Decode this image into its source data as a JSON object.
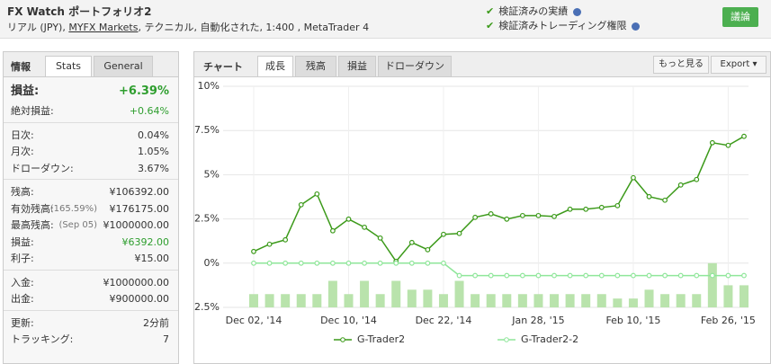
{
  "header": {
    "title": "FX Watch ポートフォリオ2",
    "subtitle_parts": [
      "リアル (JPY), ",
      "MYFX Markets",
      ", テクニカル, 自動化された, 1:400 , MetaTrader 4"
    ],
    "badges": [
      "検証済みの実績",
      "検証済みトレーディング権限"
    ],
    "button": "議論"
  },
  "sidebar": {
    "tabs": [
      "情報",
      "Stats",
      "General"
    ],
    "groups": [
      [
        {
          "label": "損益:",
          "value": "+6.39%",
          "value_color": "#2e9e2e"
        },
        {
          "label": "絶対損益:",
          "value": "+0.64%",
          "value_color": "#2e9e2e"
        }
      ],
      [
        {
          "label": "日次:",
          "value": "0.04%"
        },
        {
          "label": "月次:",
          "value": "1.05%"
        },
        {
          "label": "ドローダウン:",
          "value": "3.67%"
        }
      ],
      [
        {
          "label": "残高:",
          "value": "¥106392.00"
        },
        {
          "label": "有効残高:",
          "note": "(165.59%)",
          "value": "¥176175.00"
        },
        {
          "label": "最高残高:",
          "note": "(Sep 05)",
          "value": "¥1000000.00"
        },
        {
          "label": "損益:",
          "value": "¥6392.00",
          "value_color": "#2e9e2e"
        },
        {
          "label": "利子:",
          "value": "¥15.00"
        }
      ],
      [
        {
          "label": "入金:",
          "value": "¥1000000.00"
        },
        {
          "label": "出金:",
          "value": "¥900000.00"
        }
      ],
      [
        {
          "label": "更新:",
          "value": "2分前"
        },
        {
          "label": "トラッキング:",
          "value": "7"
        }
      ]
    ]
  },
  "chart_panel": {
    "label": "チャート",
    "tabs": [
      "成長",
      "残高",
      "損益",
      "ドローダウン"
    ],
    "active_tab": 0,
    "buttons": [
      "もっと見る",
      "Export"
    ]
  },
  "chart_data": {
    "type": "line",
    "categories": [
      "Dec 02, '14",
      null,
      null,
      null,
      null,
      null,
      "Dec 10, '14",
      null,
      null,
      null,
      null,
      null,
      "Dec 22, '14",
      null,
      null,
      null,
      null,
      null,
      "Jan 28, '15",
      null,
      null,
      null,
      null,
      null,
      "Feb 10, '15",
      null,
      null,
      null,
      null,
      null,
      "Feb 26, '15",
      null
    ],
    "series": [
      {
        "name": "G-Trader2",
        "color": "#3c9a1a",
        "values": [
          0.66,
          1.07,
          1.32,
          3.3,
          3.91,
          1.83,
          2.49,
          2.03,
          1.42,
          0.1,
          1.17,
          0.76,
          1.63,
          1.68,
          2.59,
          2.79,
          2.49,
          2.69,
          2.69,
          2.64,
          3.05,
          3.05,
          3.15,
          3.25,
          4.83,
          3.76,
          3.56,
          4.42,
          4.73,
          6.81,
          6.66,
          7.17
        ]
      },
      {
        "name": "G-Trader2-2",
        "color": "#8fe69a",
        "values": [
          0,
          0,
          0,
          0,
          0,
          0,
          0,
          0,
          0,
          0,
          0,
          0,
          0,
          -0.7,
          -0.7,
          -0.7,
          -0.7,
          -0.7,
          -0.7,
          -0.7,
          -0.7,
          -0.7,
          -0.7,
          -0.7,
          -0.7,
          -0.7,
          -0.7,
          -0.7,
          -0.7,
          -0.7,
          -0.7,
          -0.7
        ]
      }
    ],
    "bars": {
      "color": "#b9e3ac",
      "values": [
        -1.75,
        -1.75,
        -1.75,
        -1.75,
        -1.75,
        -1.0,
        -1.75,
        -1.0,
        -1.75,
        -1.0,
        -1.5,
        -1.5,
        -1.75,
        -1.0,
        -1.75,
        -1.75,
        -1.75,
        -1.75,
        -1.75,
        -1.75,
        -1.75,
        -1.75,
        -1.75,
        -2.0,
        -2.0,
        -1.5,
        -1.75,
        -1.75,
        -1.75,
        0,
        -1.25,
        -1.25
      ]
    },
    "ylim": [
      -2.5,
      10
    ],
    "yticks": [
      {
        "value": -2.5,
        "label": "-2.5%"
      },
      {
        "value": 0,
        "label": "0%"
      },
      {
        "value": 2.5,
        "label": "2.5%"
      },
      {
        "value": 5,
        "label": "5%"
      },
      {
        "value": 7.5,
        "label": "7.5%"
      },
      {
        "value": 10,
        "label": "10%"
      }
    ],
    "grid": true
  }
}
